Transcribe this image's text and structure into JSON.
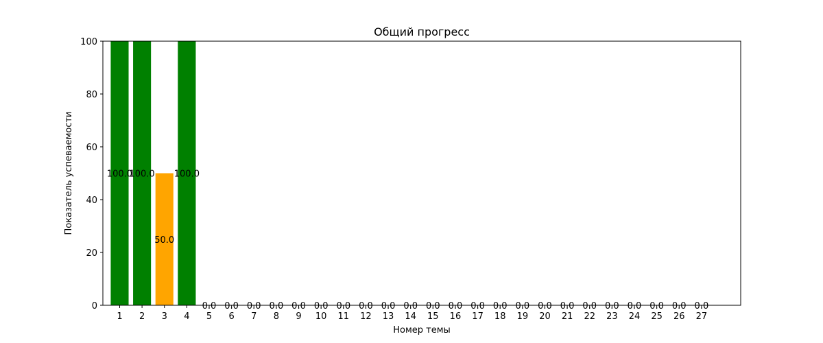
{
  "chart_data": {
    "type": "bar",
    "title": "Общий прогресс",
    "xlabel": "Номер темы",
    "ylabel": "Показатель успеваемости",
    "ylim": [
      0,
      100
    ],
    "yticks": [
      0,
      20,
      40,
      60,
      80,
      100
    ],
    "xlim": [
      -0.75,
      27.75
    ],
    "grid": false,
    "legend": "none",
    "categories": [
      "1",
      "2",
      "3",
      "4",
      "5",
      "6",
      "7",
      "8",
      "9",
      "10",
      "11",
      "12",
      "13",
      "14",
      "15",
      "16",
      "17",
      "18",
      "19",
      "20",
      "21",
      "22",
      "23",
      "24",
      "25",
      "26",
      "27"
    ],
    "values": [
      100,
      100,
      50,
      100,
      0,
      0,
      0,
      0,
      0,
      0,
      0,
      0,
      0,
      0,
      0,
      0,
      0,
      0,
      0,
      0,
      0,
      0,
      0,
      0,
      0,
      0,
      0
    ],
    "value_labels": [
      "100.0",
      "100.0",
      "50.0",
      "100.0",
      "0.0",
      "0.0",
      "0.0",
      "0.0",
      "0.0",
      "0.0",
      "0.0",
      "0.0",
      "0.0",
      "0.0",
      "0.0",
      "0.0",
      "0.0",
      "0.0",
      "0.0",
      "0.0",
      "0.0",
      "0.0",
      "0.0",
      "0.0",
      "0.0",
      "0.0",
      "0.0"
    ],
    "colors": [
      "#008000",
      "#008000",
      "#ffa500",
      "#008000",
      "#ff0000",
      "#ff0000",
      "#ff0000",
      "#ff0000",
      "#ff0000",
      "#ff0000",
      "#ff0000",
      "#ff0000",
      "#ff0000",
      "#ff0000",
      "#ff0000",
      "#ff0000",
      "#ff0000",
      "#ff0000",
      "#ff0000",
      "#ff0000",
      "#ff0000",
      "#ff0000",
      "#ff0000",
      "#ff0000",
      "#ff0000",
      "#ff0000",
      "#ff0000"
    ]
  }
}
